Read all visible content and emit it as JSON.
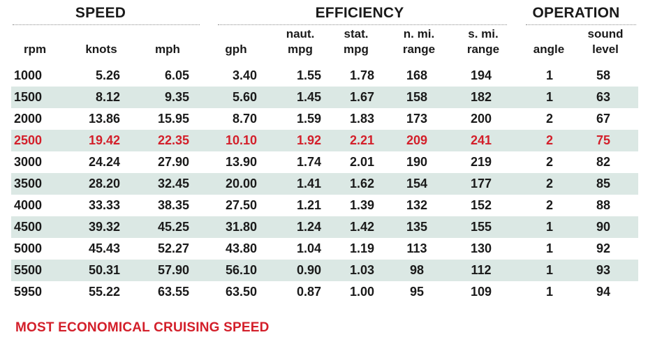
{
  "groups": [
    {
      "key": "speed",
      "label": "SPEED"
    },
    {
      "key": "efficiency",
      "label": "EFFICIENCY"
    },
    {
      "key": "operation",
      "label": "OPERATION"
    }
  ],
  "columns": [
    {
      "line1": "",
      "line2": "rpm"
    },
    {
      "line1": "",
      "line2": "knots"
    },
    {
      "line1": "",
      "line2": "mph"
    },
    {
      "line1": "",
      "line2": "gph"
    },
    {
      "line1": "naut.",
      "line2": "mpg"
    },
    {
      "line1": "stat.",
      "line2": "mpg"
    },
    {
      "line1": "n. mi.",
      "line2": "range"
    },
    {
      "line1": "s. mi.",
      "line2": "range"
    },
    {
      "line1": "",
      "line2": "angle"
    },
    {
      "line1": "sound",
      "line2": "level"
    }
  ],
  "rows": [
    [
      "1000",
      "5.26",
      "6.05",
      "3.40",
      "1.55",
      "1.78",
      "168",
      "194",
      "1",
      "58"
    ],
    [
      "1500",
      "8.12",
      "9.35",
      "5.60",
      "1.45",
      "1.67",
      "158",
      "182",
      "1",
      "63"
    ],
    [
      "2000",
      "13.86",
      "15.95",
      "8.70",
      "1.59",
      "1.83",
      "173",
      "200",
      "2",
      "67"
    ],
    [
      "2500",
      "19.42",
      "22.35",
      "10.10",
      "1.92",
      "2.21",
      "209",
      "241",
      "2",
      "75"
    ],
    [
      "3000",
      "24.24",
      "27.90",
      "13.90",
      "1.74",
      "2.01",
      "190",
      "219",
      "2",
      "82"
    ],
    [
      "3500",
      "28.20",
      "32.45",
      "20.00",
      "1.41",
      "1.62",
      "154",
      "177",
      "2",
      "85"
    ],
    [
      "4000",
      "33.33",
      "38.35",
      "27.50",
      "1.21",
      "1.39",
      "132",
      "152",
      "2",
      "88"
    ],
    [
      "4500",
      "39.32",
      "45.25",
      "31.80",
      "1.24",
      "1.42",
      "135",
      "155",
      "1",
      "90"
    ],
    [
      "5000",
      "45.43",
      "52.27",
      "43.80",
      "1.04",
      "1.19",
      "113",
      "130",
      "1",
      "92"
    ],
    [
      "5500",
      "50.31",
      "57.90",
      "56.10",
      "0.90",
      "1.03",
      "98",
      "112",
      "1",
      "93"
    ],
    [
      "5950",
      "55.22",
      "63.55",
      "63.50",
      "0.87",
      "1.00",
      "95",
      "109",
      "1",
      "94"
    ]
  ],
  "highlight_row": 3,
  "footnote": "MOST ECONOMICAL CRUISING SPEED",
  "colors": {
    "highlight": "#d31f2a",
    "stripe": "#dbe8e4",
    "text": "#1a1a1a"
  }
}
